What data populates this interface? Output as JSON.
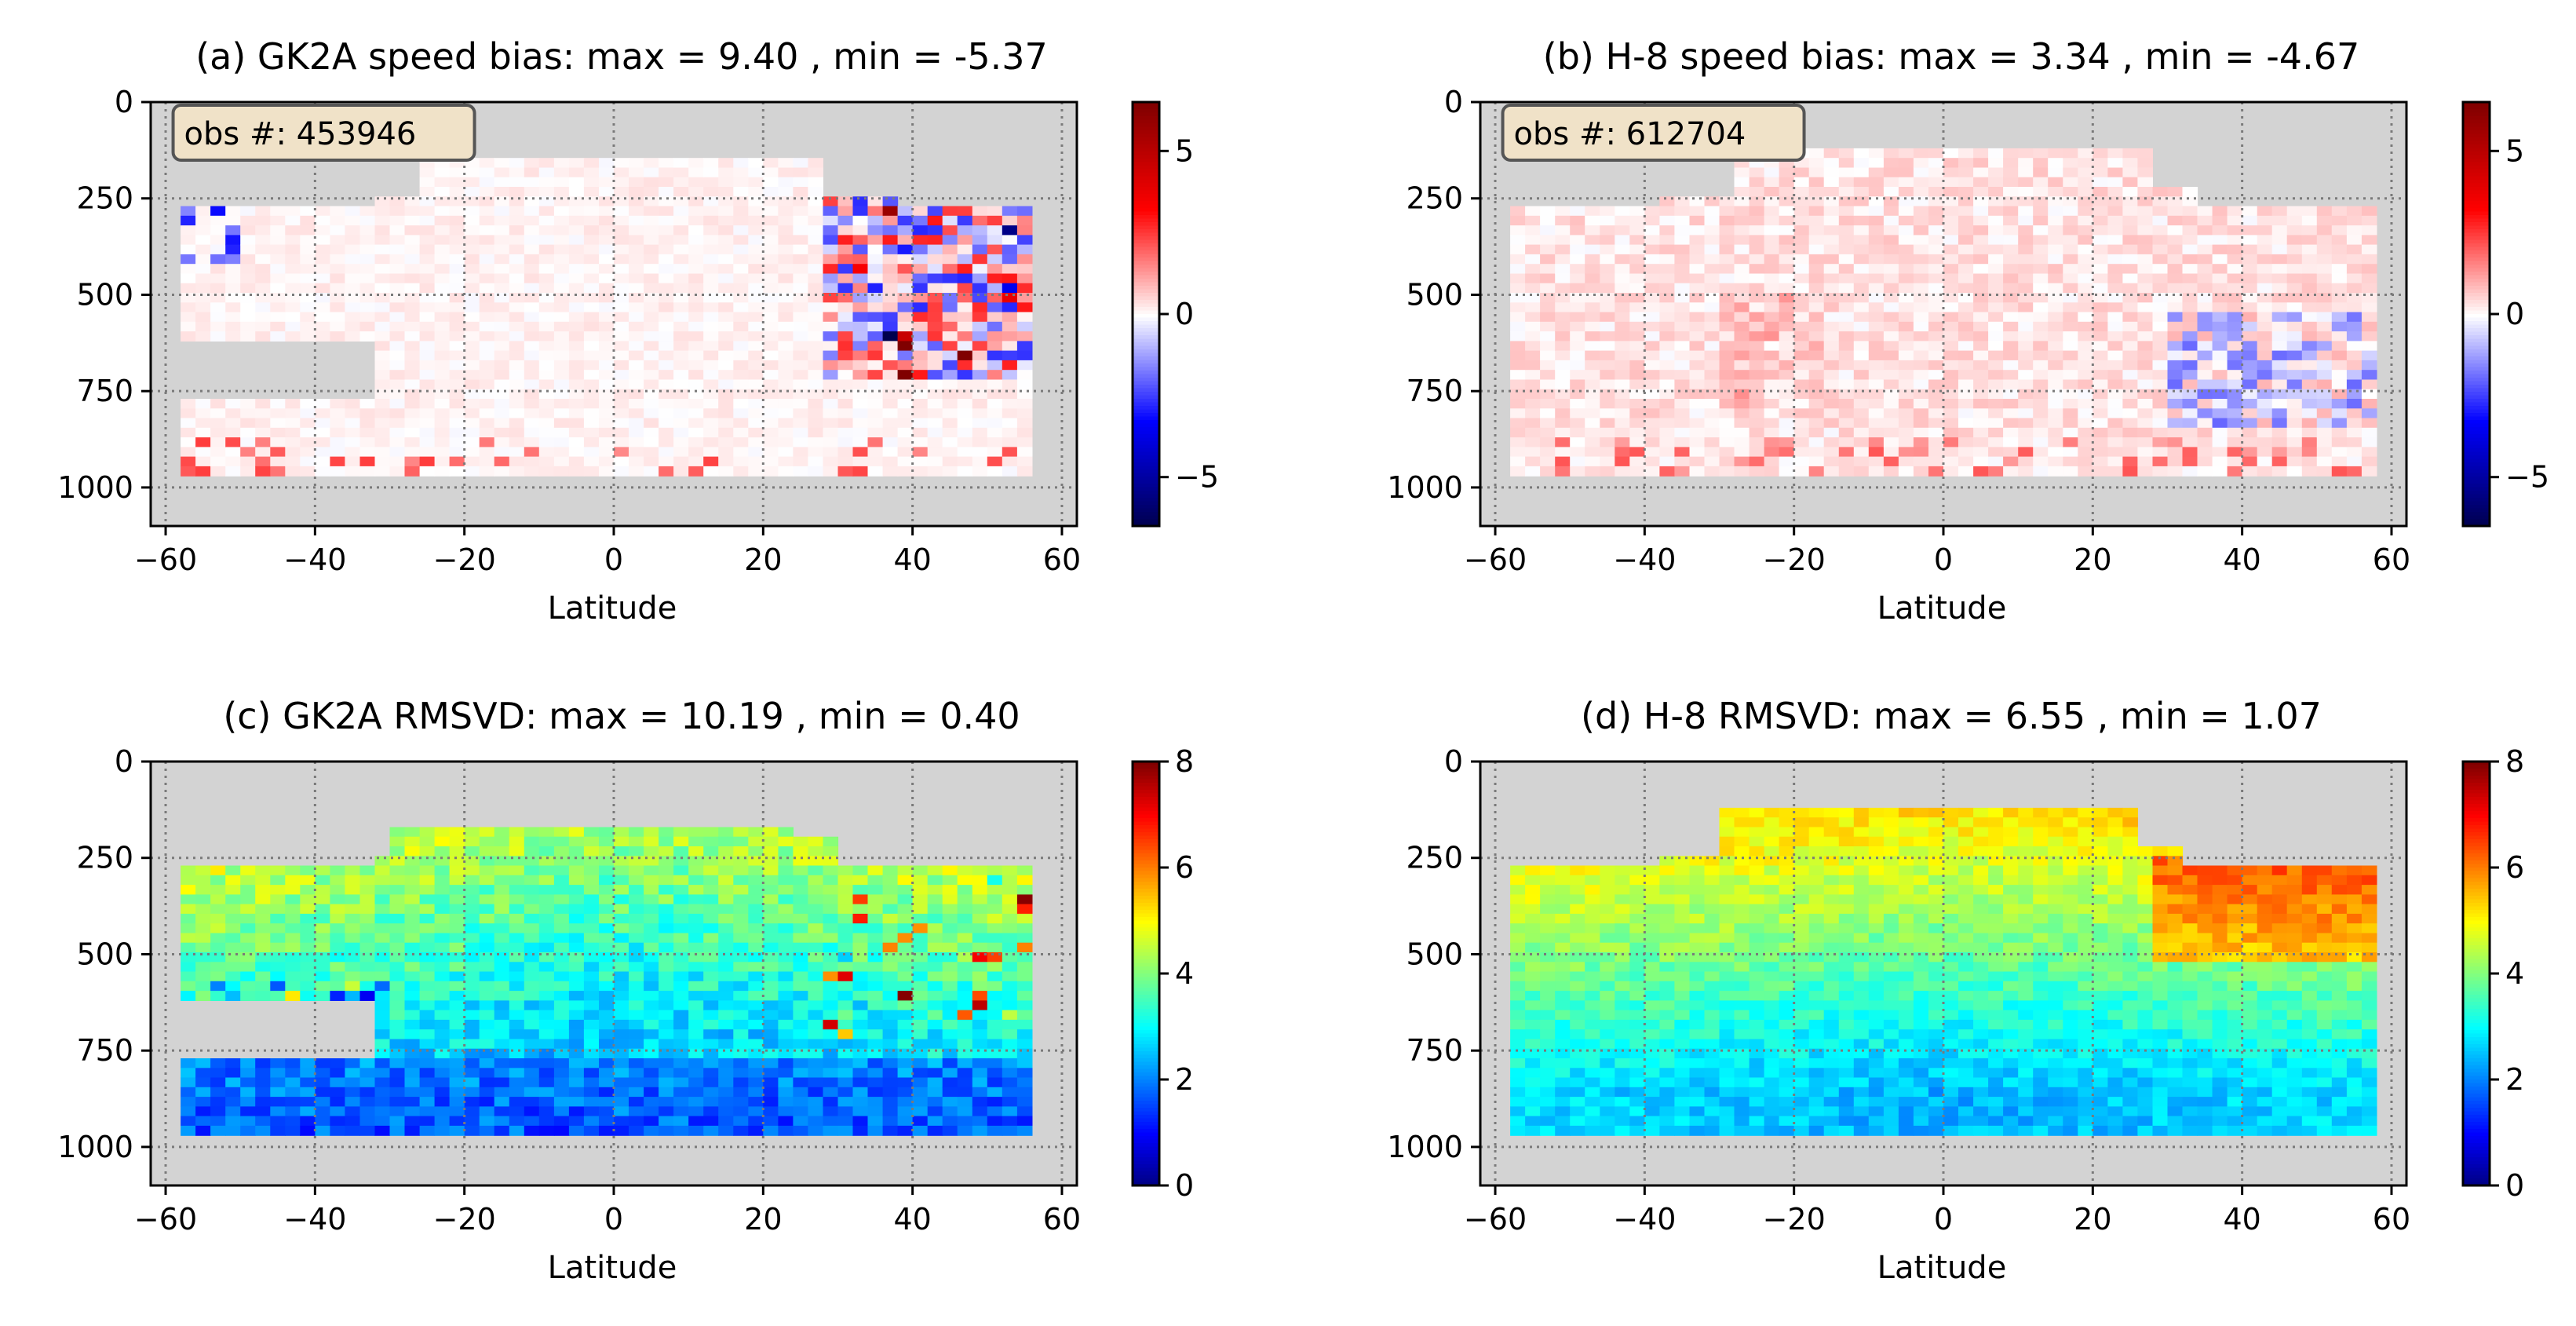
{
  "chart_data": [
    {
      "type": "heatmap",
      "panel": "a",
      "title": "(a) GK2A speed bias: max = 9.40 , min = -5.37",
      "xlabel": "Latitude",
      "ylabel": "",
      "xlim": [
        -62,
        62
      ],
      "ylim": [
        1100,
        0
      ],
      "xticks": [
        -60,
        -40,
        -20,
        0,
        20,
        40,
        60
      ],
      "xtick_labels": [
        "−60",
        "−40",
        "−20",
        "0",
        "20",
        "40",
        "60"
      ],
      "yticks": [
        0,
        250,
        500,
        750,
        1000
      ],
      "ytick_labels": [
        "0",
        "250",
        "500",
        "750",
        "1000"
      ],
      "grid": true,
      "colormap": "seismic",
      "clim": [
        -6.5,
        6.5
      ],
      "colorbar_ticks": [
        5,
        0,
        -5
      ],
      "colorbar_tick_labels": [
        "5",
        "0",
        "−5"
      ],
      "annotation": "obs #: 453946",
      "max_value": 9.4,
      "min_value": -5.37,
      "coverage": {
        "region_main": {
          "lat": [
            -58,
            56
          ],
          "pressure": [
            130,
            965
          ]
        },
        "region_gap": {
          "lat": [
            -58,
            -32
          ],
          "pressure": [
            615,
            770
          ]
        }
      }
    },
    {
      "type": "heatmap",
      "panel": "b",
      "title": "(b) H-8 speed bias: max = 3.34 , min = -4.67",
      "xlabel": "Latitude",
      "ylabel": "",
      "xlim": [
        -62,
        62
      ],
      "ylim": [
        1100,
        0
      ],
      "xticks": [
        -60,
        -40,
        -20,
        0,
        20,
        40,
        60
      ],
      "xtick_labels": [
        "−60",
        "−40",
        "−20",
        "0",
        "20",
        "40",
        "60"
      ],
      "yticks": [
        0,
        250,
        500,
        750,
        1000
      ],
      "ytick_labels": [
        "0",
        "250",
        "500",
        "750",
        "1000"
      ],
      "grid": true,
      "colormap": "seismic",
      "clim": [
        -6.5,
        6.5
      ],
      "colorbar_ticks": [
        5,
        0,
        -5
      ],
      "colorbar_tick_labels": [
        "5",
        "0",
        "−5"
      ],
      "annotation": "obs #: 612704",
      "max_value": 3.34,
      "min_value": -4.67,
      "coverage": {
        "region_main": {
          "lat": [
            -58,
            57
          ],
          "pressure": [
            120,
            965
          ]
        }
      }
    },
    {
      "type": "heatmap",
      "panel": "c",
      "title": "(c) GK2A RMSVD: max = 10.19 , min = 0.40",
      "xlabel": "Latitude",
      "ylabel": "",
      "xlim": [
        -62,
        62
      ],
      "ylim": [
        1100,
        0
      ],
      "xticks": [
        -60,
        -40,
        -20,
        0,
        20,
        40,
        60
      ],
      "xtick_labels": [
        "−60",
        "−40",
        "−20",
        "0",
        "20",
        "40",
        "60"
      ],
      "yticks": [
        0,
        250,
        500,
        750,
        1000
      ],
      "ytick_labels": [
        "0",
        "250",
        "500",
        "750",
        "1000"
      ],
      "grid": true,
      "colormap": "jet",
      "clim": [
        0,
        8
      ],
      "colorbar_ticks": [
        8,
        6,
        4,
        2,
        0
      ],
      "colorbar_tick_labels": [
        "8",
        "6",
        "4",
        "2",
        "0"
      ],
      "max_value": 10.19,
      "min_value": 0.4,
      "coverage": {
        "region_main": {
          "lat": [
            -58,
            56
          ],
          "pressure": [
            160,
            965
          ]
        },
        "region_gap": {
          "lat": [
            -58,
            -32
          ],
          "pressure": [
            625,
            770
          ]
        }
      }
    },
    {
      "type": "heatmap",
      "panel": "d",
      "title": "(d) H-8 RMSVD: max = 6.55 , min = 1.07",
      "xlabel": "Latitude",
      "ylabel": "",
      "xlim": [
        -62,
        62
      ],
      "ylim": [
        1100,
        0
      ],
      "xticks": [
        -60,
        -40,
        -20,
        0,
        20,
        40,
        60
      ],
      "xtick_labels": [
        "−60",
        "−40",
        "−20",
        "0",
        "20",
        "40",
        "60"
      ],
      "yticks": [
        0,
        250,
        500,
        750,
        1000
      ],
      "ytick_labels": [
        "0",
        "250",
        "500",
        "750",
        "1000"
      ],
      "grid": true,
      "colormap": "jet",
      "clim": [
        0,
        8
      ],
      "colorbar_ticks": [
        8,
        6,
        4,
        2,
        0
      ],
      "colorbar_tick_labels": [
        "8",
        "6",
        "4",
        "2",
        "0"
      ],
      "max_value": 6.55,
      "min_value": 1.07,
      "coverage": {
        "region_main": {
          "lat": [
            -58,
            57
          ],
          "pressure": [
            120,
            965
          ]
        }
      }
    }
  ],
  "colors": {
    "missing_data": "#d3d3d3",
    "grid": "#7a7a7a",
    "annotation_box": "#f0e2c8"
  }
}
